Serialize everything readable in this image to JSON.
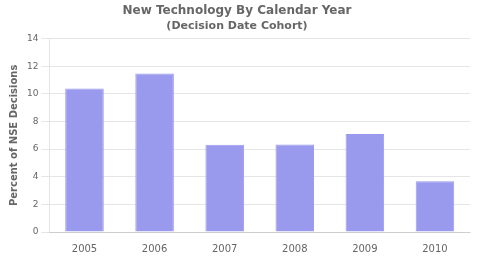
{
  "chart_data": {
    "type": "bar",
    "title": "New Technology By Calendar Year",
    "subtitle": "(Decision Date Cohort)",
    "y_label": "Percent of NSE Decisions",
    "categories": [
      "2005",
      "2006",
      "2007",
      "2008",
      "2009",
      "2010"
    ],
    "values": [
      10.38,
      11.48,
      6.31,
      6.33,
      7.09,
      3.68
    ],
    "color": "#9999ee",
    "ylim": [
      0,
      14
    ],
    "yticks": [
      0,
      2,
      4,
      6,
      8,
      10,
      12,
      14
    ],
    "grid": true
  }
}
